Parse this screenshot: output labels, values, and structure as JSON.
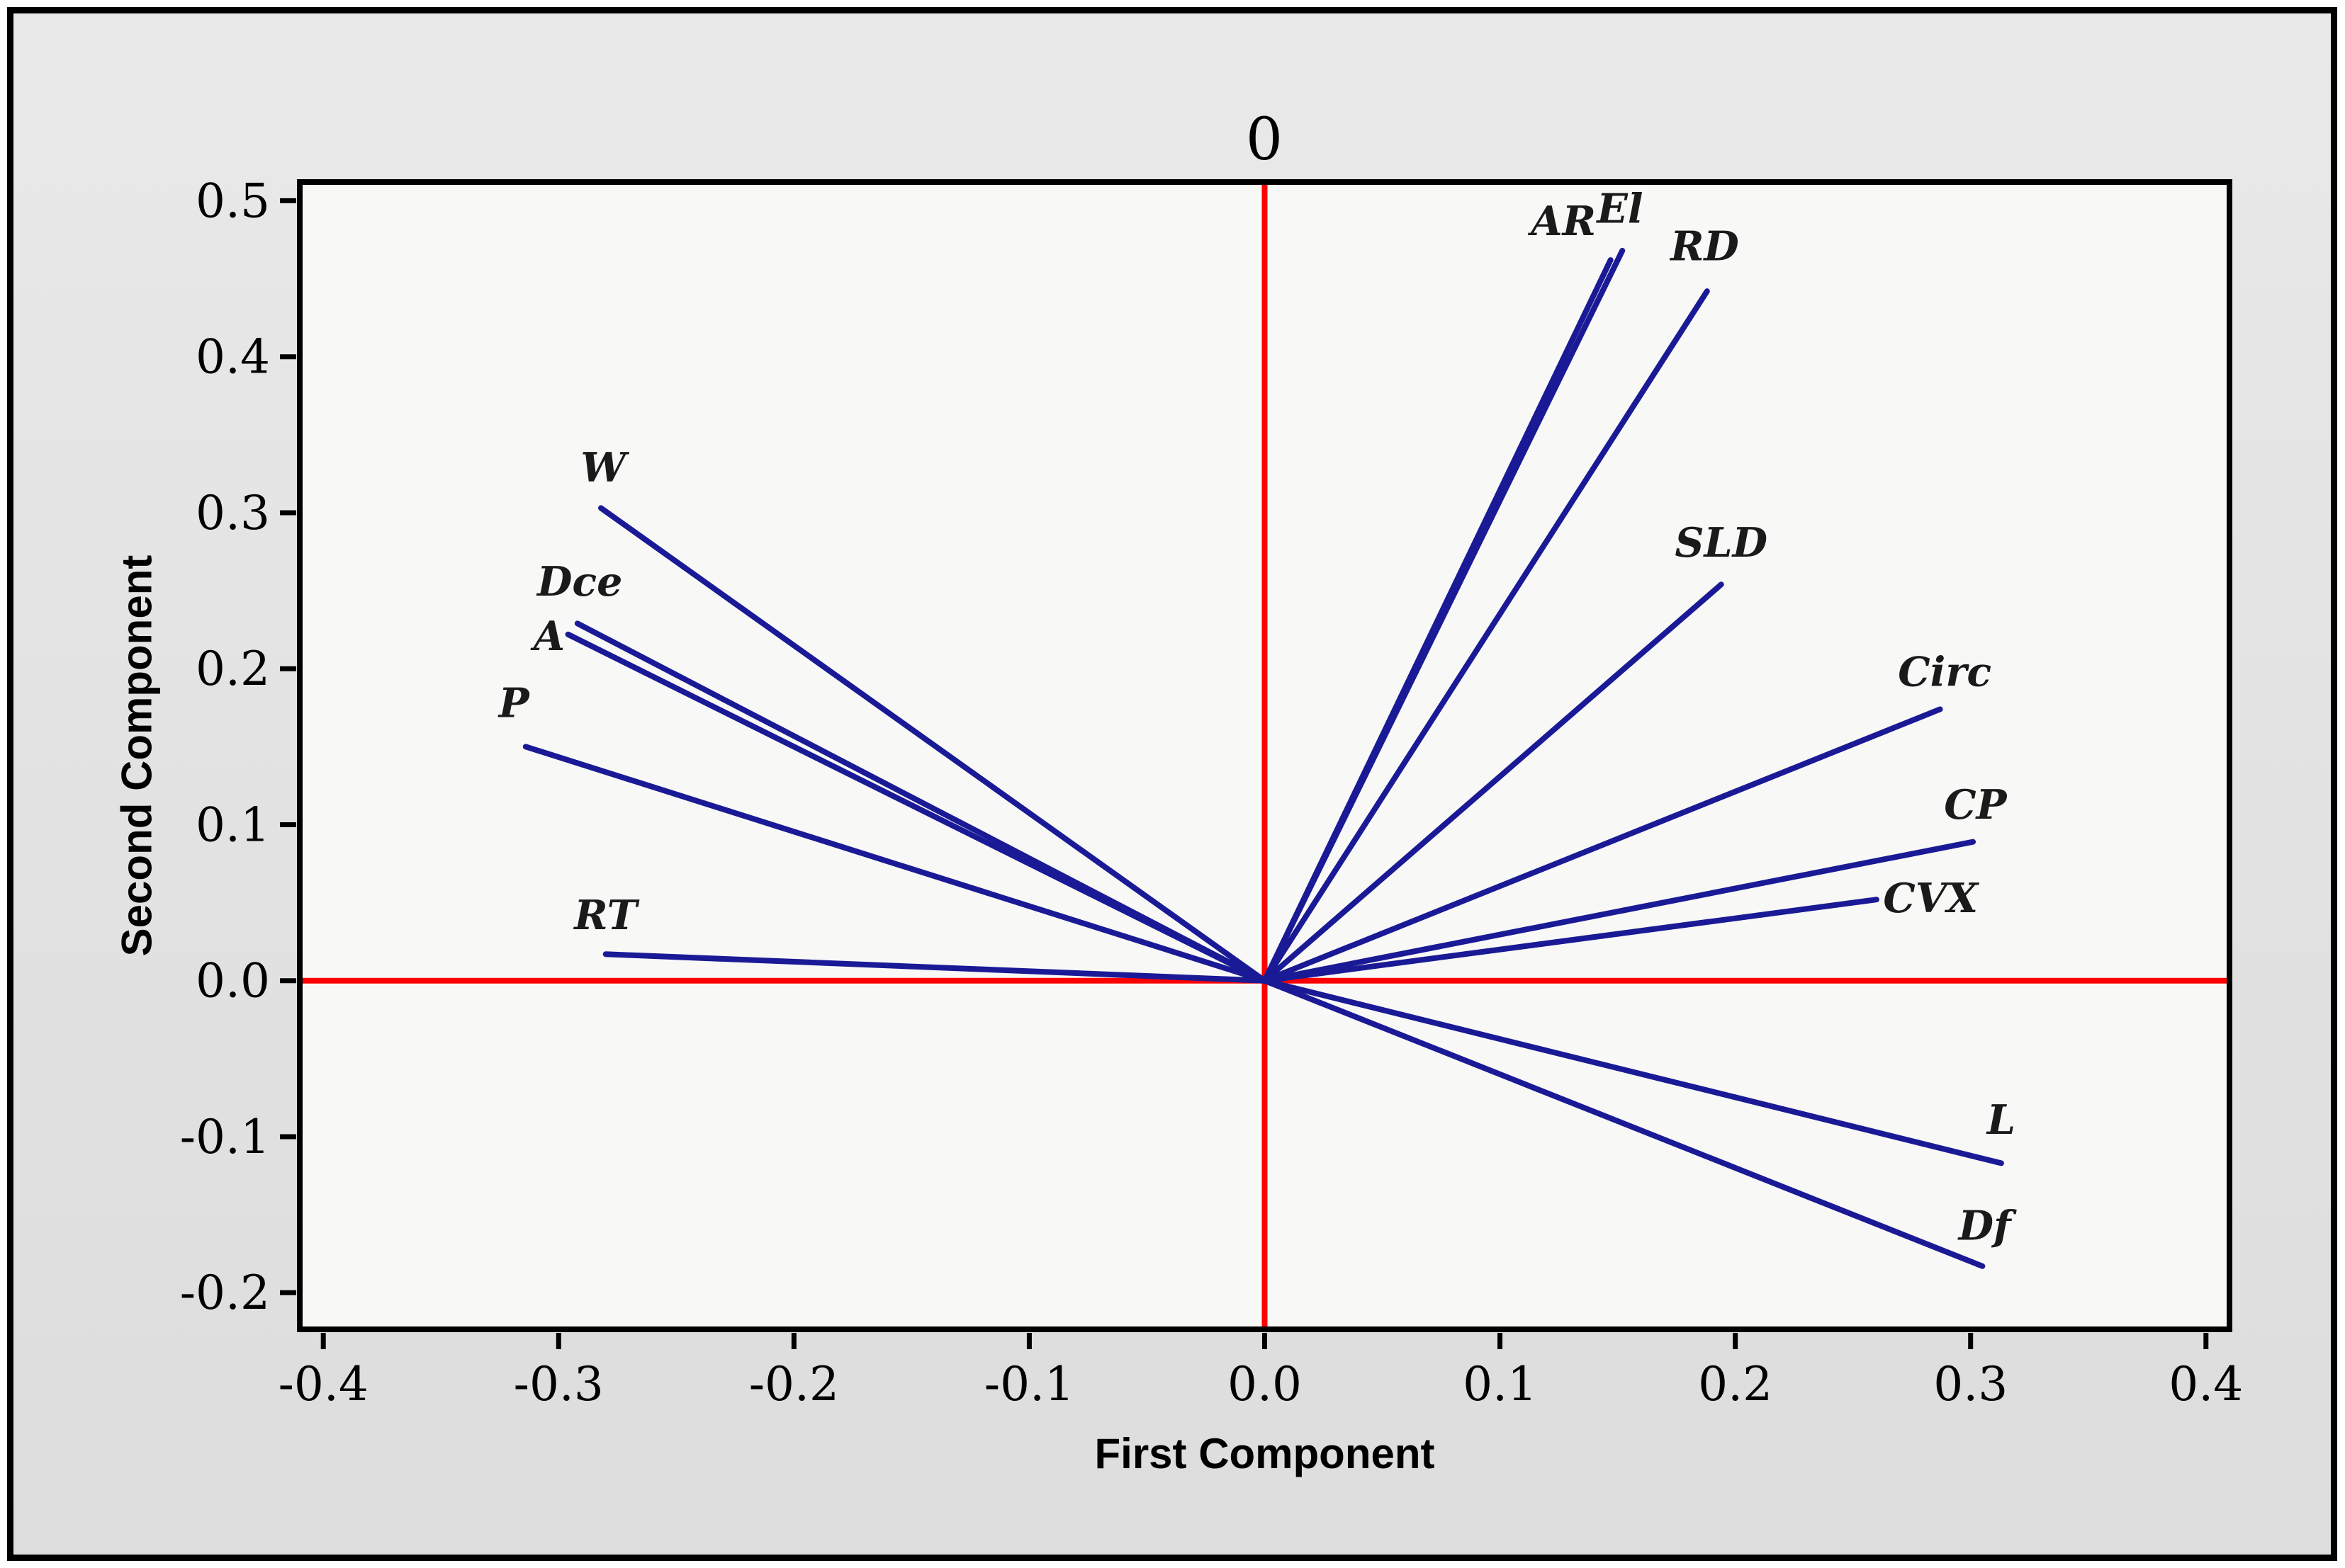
{
  "chart_data": {
    "type": "line",
    "subtype": "pca-loading-vector-plot",
    "title": "",
    "xlabel": "First Component",
    "ylabel": "Second Component",
    "top_axis_label": "0",
    "xlim": [
      -0.41,
      0.41
    ],
    "ylim": [
      -0.2235,
      0.512
    ],
    "grid": false,
    "legend": null,
    "x_ticks": {
      "values": [
        -0.4,
        -0.3,
        -0.2,
        -0.1,
        0.0,
        0.1,
        0.2,
        0.3,
        0.4
      ],
      "labels": [
        "-0.4",
        "-0.3",
        "-0.2",
        "-0.1",
        "0.0",
        "0.1",
        "0.2",
        "0.3",
        "0.4"
      ]
    },
    "y_ticks": {
      "values": [
        -0.2,
        -0.1,
        0.0,
        0.1,
        0.2,
        0.3,
        0.4,
        0.5
      ],
      "labels": [
        "-0.2",
        "-0.1",
        "0.0",
        "0.1",
        "0.2",
        "0.3",
        "0.4",
        "0.5"
      ]
    },
    "reference_lines": {
      "x": 0.0,
      "y": 0.0
    },
    "vectors": [
      {
        "name": "AR",
        "x": 0.147,
        "y": 0.462,
        "label_x": 0.127,
        "label_y": 0.487
      },
      {
        "name": "El",
        "x": 0.152,
        "y": 0.468,
        "label_x": 0.151,
        "label_y": 0.495
      },
      {
        "name": "RD",
        "x": 0.188,
        "y": 0.442,
        "label_x": 0.187,
        "label_y": 0.471
      },
      {
        "name": "SLD",
        "x": 0.194,
        "y": 0.254,
        "label_x": 0.194,
        "label_y": 0.281
      },
      {
        "name": "Circ",
        "x": 0.287,
        "y": 0.174,
        "label_x": 0.289,
        "label_y": 0.198
      },
      {
        "name": "CP",
        "x": 0.301,
        "y": 0.089,
        "label_x": 0.302,
        "label_y": 0.113
      },
      {
        "name": "CVX",
        "x": 0.26,
        "y": 0.052,
        "label_x": 0.283,
        "label_y": 0.053
      },
      {
        "name": "L",
        "x": 0.313,
        "y": -0.117,
        "label_x": 0.313,
        "label_y": -0.089
      },
      {
        "name": "Df",
        "x": 0.305,
        "y": -0.183,
        "label_x": 0.306,
        "label_y": -0.157
      },
      {
        "name": "W",
        "x": -0.282,
        "y": 0.303,
        "label_x": -0.281,
        "label_y": 0.329
      },
      {
        "name": "Dce",
        "x": -0.292,
        "y": 0.229,
        "label_x": -0.291,
        "label_y": 0.256
      },
      {
        "name": "A",
        "x": -0.296,
        "y": 0.222,
        "label_x": -0.304,
        "label_y": 0.221
      },
      {
        "name": "P",
        "x": -0.314,
        "y": 0.15,
        "label_x": -0.319,
        "label_y": 0.178
      },
      {
        "name": "RT",
        "x": -0.28,
        "y": 0.017,
        "label_x": -0.28,
        "label_y": 0.042
      }
    ],
    "colors": {
      "vector": "#1a1a96",
      "reference": "#fb0200",
      "axis": "#000000",
      "plot_background": "#f8f8f7",
      "outer_background": "#e3e3e3"
    }
  }
}
